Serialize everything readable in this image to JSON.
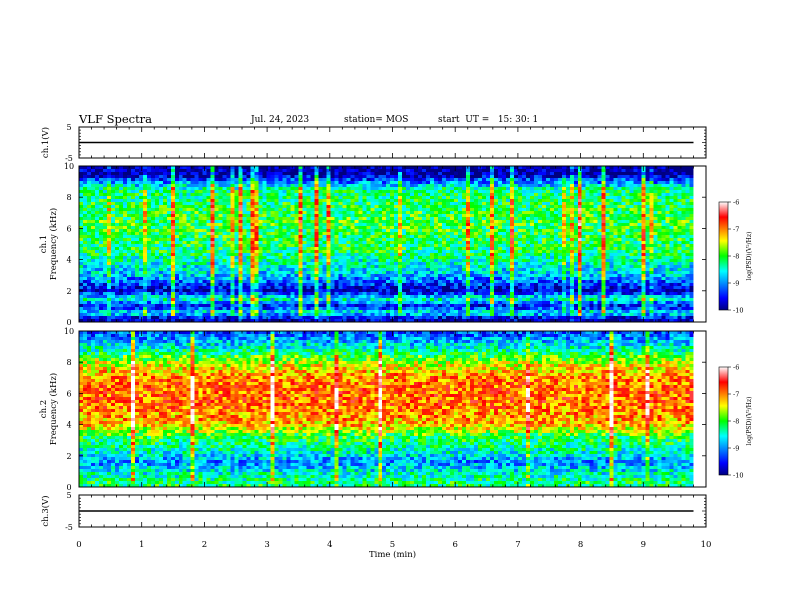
{
  "header": {
    "title": "VLF Spectra",
    "date": "Jul. 24, 2023",
    "station": "station= MOS",
    "start": "start  UT =   15: 30: 1"
  },
  "chart_data": [
    {
      "type": "line",
      "panel": "ch1_waveform",
      "ylabel": "ch.1(V)",
      "ylim": [
        -5,
        5
      ],
      "yticks": [
        "5",
        "-5"
      ],
      "xlim": [
        0,
        10
      ],
      "series": [
        {
          "x": [
            0,
            9.8
          ],
          "values": [
            0,
            0
          ]
        }
      ]
    },
    {
      "type": "heatmap",
      "panel": "ch1_spectrogram",
      "ylabel_channel": "ch.1",
      "ylabel": "Frequency (kHz)",
      "ylim": [
        0,
        10
      ],
      "yticks": [
        "0",
        "2",
        "4",
        "6",
        "8",
        "10"
      ],
      "xlim": [
        0,
        10
      ],
      "data_extent_min": 9.8,
      "colorbar": {
        "label": "log(PSD)(V²/Hz)",
        "min": -10,
        "max": -6,
        "ticks": [
          "-6",
          "-7",
          "-8",
          "-9",
          "-10"
        ],
        "scale": "jet"
      },
      "approx_level_profile": [
        {
          "freq_khz": 0.2,
          "log_psd": -9.8
        },
        {
          "freq_khz": 0.6,
          "log_psd": -8.5
        },
        {
          "freq_khz": 1.0,
          "log_psd": -9.6
        },
        {
          "freq_khz": 1.5,
          "log_psd": -8.4
        },
        {
          "freq_khz": 2.0,
          "log_psd": -9.8
        },
        {
          "freq_khz": 3.0,
          "log_psd": -8.8
        },
        {
          "freq_khz": 4.5,
          "log_psd": -8.2
        },
        {
          "freq_khz": 6.5,
          "log_psd": -8.0
        },
        {
          "freq_khz": 8.5,
          "log_psd": -8.3
        },
        {
          "freq_khz": 9.5,
          "log_psd": -9.9
        }
      ]
    },
    {
      "type": "heatmap",
      "panel": "ch2_spectrogram",
      "ylabel_channel": "ch.2",
      "ylabel": "Frequency (kHz)",
      "ylim": [
        0,
        10
      ],
      "yticks": [
        "0",
        "2",
        "4",
        "6",
        "8",
        "10"
      ],
      "xlim": [
        0,
        10
      ],
      "data_extent_min": 9.8,
      "colorbar": {
        "label": "log(PSD)(V²/Hz)",
        "min": -10,
        "max": -6,
        "ticks": [
          "-6",
          "-7",
          "-8",
          "-9",
          "-10"
        ],
        "scale": "jet"
      },
      "approx_level_profile": [
        {
          "freq_khz": 0.3,
          "log_psd": -8.2
        },
        {
          "freq_khz": 1.0,
          "log_psd": -8.6
        },
        {
          "freq_khz": 1.6,
          "log_psd": -9.0
        },
        {
          "freq_khz": 2.4,
          "log_psd": -8.4
        },
        {
          "freq_khz": 3.2,
          "log_psd": -8.1
        },
        {
          "freq_khz": 4.0,
          "log_psd": -7.2
        },
        {
          "freq_khz": 5.5,
          "log_psd": -6.9
        },
        {
          "freq_khz": 7.0,
          "log_psd": -7.0
        },
        {
          "freq_khz": 8.0,
          "log_psd": -7.6
        },
        {
          "freq_khz": 9.0,
          "log_psd": -8.6
        },
        {
          "freq_khz": 9.8,
          "log_psd": -9.2
        }
      ]
    },
    {
      "type": "line",
      "panel": "ch3_waveform",
      "ylabel": "ch.3(V)",
      "ylim": [
        -5,
        5
      ],
      "yticks": [
        "5",
        "-5"
      ],
      "xlim": [
        0,
        10
      ],
      "series": [
        {
          "x": [
            0,
            9.8
          ],
          "values": [
            0,
            0
          ]
        }
      ]
    }
  ],
  "xaxis": {
    "label": "Time (min)",
    "ticks": [
      "0",
      "1",
      "2",
      "3",
      "4",
      "5",
      "6",
      "7",
      "8",
      "9",
      "10"
    ]
  }
}
